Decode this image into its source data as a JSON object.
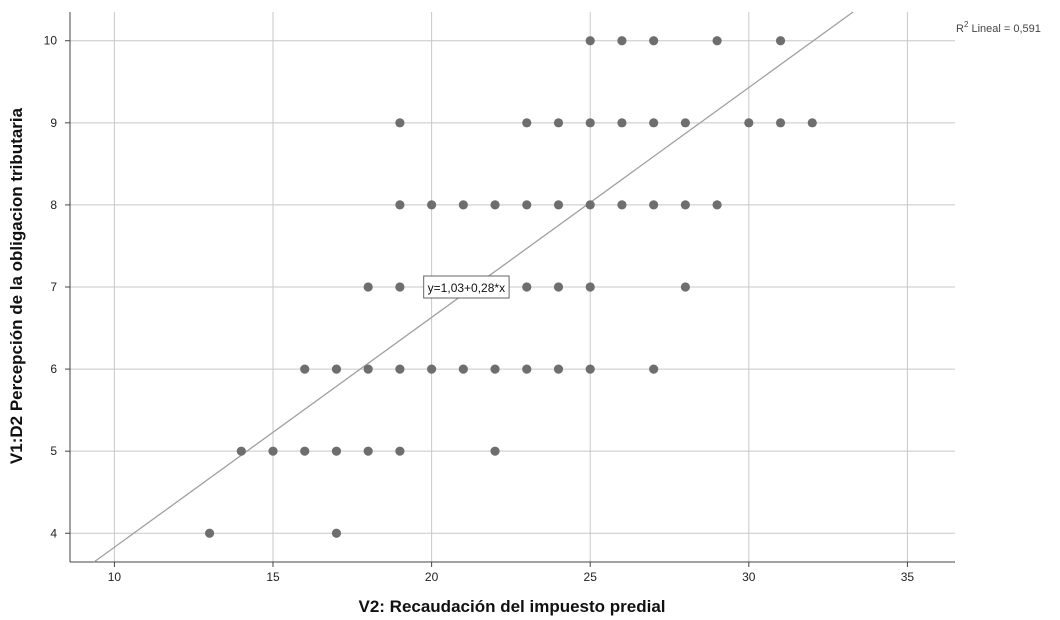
{
  "chart_data": {
    "type": "scatter",
    "title": "",
    "xlabel": "V2: Recaudación del impuesto predial",
    "ylabel": "V1:D2 Percepción de la obligacion tributaria",
    "xlim": [
      8.6,
      36.5
    ],
    "ylim": [
      3.65,
      10.35
    ],
    "xticks": [
      10,
      15,
      20,
      25,
      30,
      35
    ],
    "yticks": [
      4,
      5,
      6,
      7,
      8,
      9,
      10
    ],
    "grid": true,
    "points": [
      {
        "x": 25,
        "y": 10
      },
      {
        "x": 26,
        "y": 10
      },
      {
        "x": 27,
        "y": 10
      },
      {
        "x": 29,
        "y": 10
      },
      {
        "x": 31,
        "y": 10
      },
      {
        "x": 19,
        "y": 9
      },
      {
        "x": 23,
        "y": 9
      },
      {
        "x": 24,
        "y": 9
      },
      {
        "x": 25,
        "y": 9
      },
      {
        "x": 26,
        "y": 9
      },
      {
        "x": 27,
        "y": 9
      },
      {
        "x": 28,
        "y": 9
      },
      {
        "x": 30,
        "y": 9
      },
      {
        "x": 31,
        "y": 9
      },
      {
        "x": 32,
        "y": 9
      },
      {
        "x": 19,
        "y": 8
      },
      {
        "x": 20,
        "y": 8
      },
      {
        "x": 21,
        "y": 8
      },
      {
        "x": 22,
        "y": 8
      },
      {
        "x": 23,
        "y": 8
      },
      {
        "x": 24,
        "y": 8
      },
      {
        "x": 25,
        "y": 8
      },
      {
        "x": 26,
        "y": 8
      },
      {
        "x": 27,
        "y": 8
      },
      {
        "x": 28,
        "y": 8
      },
      {
        "x": 29,
        "y": 8
      },
      {
        "x": 18,
        "y": 7
      },
      {
        "x": 19,
        "y": 7
      },
      {
        "x": 23,
        "y": 7
      },
      {
        "x": 24,
        "y": 7
      },
      {
        "x": 25,
        "y": 7
      },
      {
        "x": 28,
        "y": 7
      },
      {
        "x": 16,
        "y": 6
      },
      {
        "x": 17,
        "y": 6
      },
      {
        "x": 18,
        "y": 6
      },
      {
        "x": 19,
        "y": 6
      },
      {
        "x": 20,
        "y": 6
      },
      {
        "x": 21,
        "y": 6
      },
      {
        "x": 22,
        "y": 6
      },
      {
        "x": 23,
        "y": 6
      },
      {
        "x": 24,
        "y": 6
      },
      {
        "x": 25,
        "y": 6
      },
      {
        "x": 27,
        "y": 6
      },
      {
        "x": 14,
        "y": 5
      },
      {
        "x": 15,
        "y": 5
      },
      {
        "x": 16,
        "y": 5
      },
      {
        "x": 17,
        "y": 5
      },
      {
        "x": 18,
        "y": 5
      },
      {
        "x": 19,
        "y": 5
      },
      {
        "x": 22,
        "y": 5
      },
      {
        "x": 13,
        "y": 4
      },
      {
        "x": 17,
        "y": 4
      }
    ],
    "fit_line": {
      "equation": "y=1,03+0,28*x",
      "intercept": 1.03,
      "slope": 0.28,
      "r2_label": "Lineal = 0,591"
    },
    "colors": {
      "point": "#6e6e6e",
      "grid": "#c8c8c8",
      "axis": "#444444",
      "fit_line": "#a0a0a0"
    }
  }
}
